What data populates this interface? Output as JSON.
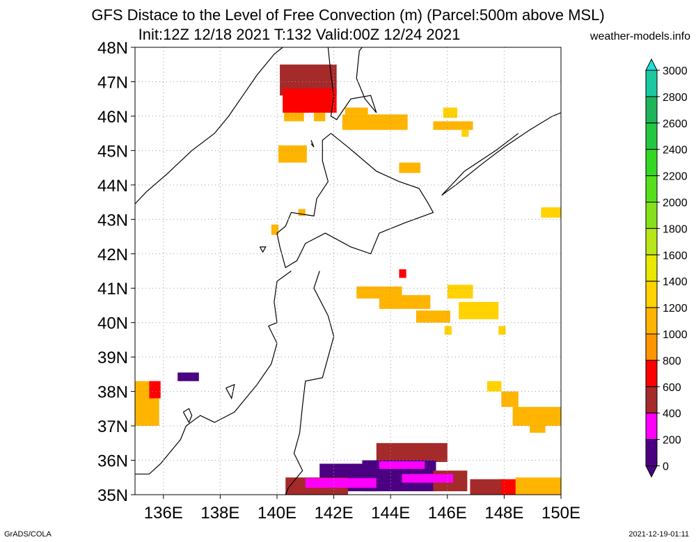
{
  "title_line1": "GFS Distace to the Level of Free Convection (m) (Parcel:500m above MSL)",
  "title_line2": "Init:12Z 12/18 2021 T:132 Valid:00Z 12/24 2021",
  "site": "weather-models.info",
  "footer_left": "GrADS/COLA",
  "footer_right": "2021-12-19-01:11",
  "map": {
    "lat_labels": [
      "48N",
      "47N",
      "46N",
      "45N",
      "44N",
      "43N",
      "42N",
      "41N",
      "40N",
      "39N",
      "38N",
      "37N",
      "36N",
      "35N"
    ],
    "lon_labels": [
      "136E",
      "138E",
      "140E",
      "142E",
      "144E",
      "146E",
      "148E",
      "150E"
    ],
    "lat_values": [
      48,
      47,
      46,
      45,
      44,
      43,
      42,
      41,
      40,
      39,
      38,
      37,
      36,
      35
    ],
    "lon_values": [
      136,
      138,
      140,
      142,
      144,
      146,
      148,
      150
    ],
    "lon_range": [
      135,
      150
    ],
    "lat_range": [
      35,
      48
    ],
    "grid": "dotted"
  },
  "colorbar": {
    "labels": [
      "3000",
      "2800",
      "2600",
      "2400",
      "2200",
      "2000",
      "1800",
      "1600",
      "1400",
      "1200",
      "1000",
      "800",
      "600",
      "400",
      "200",
      "0"
    ],
    "colors": [
      "#24dcdc",
      "#1cc8a0",
      "#1eb45a",
      "#22c840",
      "#33d822",
      "#56e01c",
      "#86e01c",
      "#b8e618",
      "#e8e800",
      "#ffd200",
      "#ffb400",
      "#ff9600",
      "#ff0000",
      "#a52a2a",
      "#ff00ff",
      "#4b0082"
    ]
  },
  "fields": [
    {
      "lon": 140.1,
      "lat": 46.6,
      "w": 2.0,
      "h": 0.9,
      "color": "#a52a2a"
    },
    {
      "lon": 140.2,
      "lat": 46.1,
      "w": 1.9,
      "h": 0.7,
      "color": "#ff0000"
    },
    {
      "lon": 140.25,
      "lat": 45.85,
      "w": 0.7,
      "h": 0.25,
      "color": "#ffb400"
    },
    {
      "lon": 141.3,
      "lat": 45.85,
      "w": 0.4,
      "h": 0.25,
      "color": "#ffb400"
    },
    {
      "lon": 142.3,
      "lat": 45.6,
      "w": 2.3,
      "h": 0.45,
      "color": "#ffb400"
    },
    {
      "lon": 142.4,
      "lat": 46.05,
      "w": 0.8,
      "h": 0.2,
      "color": "#ffb400"
    },
    {
      "lon": 145.5,
      "lat": 45.6,
      "w": 1.4,
      "h": 0.25,
      "color": "#ffb400"
    },
    {
      "lon": 145.85,
      "lat": 45.95,
      "w": 0.5,
      "h": 0.3,
      "color": "#ffd200"
    },
    {
      "lon": 146.5,
      "lat": 45.4,
      "w": 0.25,
      "h": 0.2,
      "color": "#ffd200"
    },
    {
      "lon": 140.05,
      "lat": 44.65,
      "w": 1.0,
      "h": 0.5,
      "color": "#ffb400"
    },
    {
      "lon": 144.3,
      "lat": 44.35,
      "w": 0.75,
      "h": 0.3,
      "color": "#ffb400"
    },
    {
      "lon": 140.75,
      "lat": 43.1,
      "w": 0.25,
      "h": 0.2,
      "color": "#ffb400"
    },
    {
      "lon": 139.8,
      "lat": 42.55,
      "w": 0.25,
      "h": 0.3,
      "color": "#ffb400"
    },
    {
      "lon": 149.3,
      "lat": 43.05,
      "w": 0.75,
      "h": 0.3,
      "color": "#ffd200"
    },
    {
      "lon": 144.3,
      "lat": 41.3,
      "w": 0.25,
      "h": 0.25,
      "color": "#ff0000"
    },
    {
      "lon": 142.8,
      "lat": 40.7,
      "w": 1.6,
      "h": 0.35,
      "color": "#ffb400"
    },
    {
      "lon": 143.6,
      "lat": 40.4,
      "w": 1.8,
      "h": 0.4,
      "color": "#ffb400"
    },
    {
      "lon": 144.9,
      "lat": 40.0,
      "w": 1.2,
      "h": 0.35,
      "color": "#ffb400"
    },
    {
      "lon": 146.0,
      "lat": 40.7,
      "w": 0.9,
      "h": 0.4,
      "color": "#ffd200"
    },
    {
      "lon": 146.4,
      "lat": 40.1,
      "w": 1.4,
      "h": 0.5,
      "color": "#ffd200"
    },
    {
      "lon": 145.9,
      "lat": 39.65,
      "w": 0.25,
      "h": 0.25,
      "color": "#ffd200"
    },
    {
      "lon": 147.8,
      "lat": 39.65,
      "w": 0.25,
      "h": 0.25,
      "color": "#ffd200"
    },
    {
      "lon": 147.4,
      "lat": 38.0,
      "w": 0.5,
      "h": 0.3,
      "color": "#ffd200"
    },
    {
      "lon": 147.9,
      "lat": 37.55,
      "w": 0.6,
      "h": 0.45,
      "color": "#ffb400"
    },
    {
      "lon": 148.3,
      "lat": 37.0,
      "w": 1.7,
      "h": 0.55,
      "color": "#ffb400"
    },
    {
      "lon": 148.9,
      "lat": 36.8,
      "w": 0.55,
      "h": 0.25,
      "color": "#ffb400"
    },
    {
      "lon": 135.0,
      "lat": 37.0,
      "w": 0.85,
      "h": 1.3,
      "color": "#ffb400"
    },
    {
      "lon": 135.5,
      "lat": 37.8,
      "w": 0.4,
      "h": 0.5,
      "color": "#ff0000"
    },
    {
      "lon": 136.5,
      "lat": 38.3,
      "w": 0.75,
      "h": 0.25,
      "color": "#4b0082"
    },
    {
      "lon": 143.5,
      "lat": 35.95,
      "w": 2.5,
      "h": 0.55,
      "color": "#a52a2a"
    },
    {
      "lon": 141.5,
      "lat": 35.1,
      "w": 2.2,
      "h": 0.8,
      "color": "#4b0082"
    },
    {
      "lon": 143.0,
      "lat": 35.1,
      "w": 2.6,
      "h": 0.9,
      "color": "#4b0082"
    },
    {
      "lon": 145.5,
      "lat": 35.1,
      "w": 1.2,
      "h": 0.6,
      "color": "#a52a2a"
    },
    {
      "lon": 140.3,
      "lat": 35.0,
      "w": 2.2,
      "h": 0.5,
      "color": "#a52a2a"
    },
    {
      "lon": 141.0,
      "lat": 35.2,
      "w": 2.5,
      "h": 0.28,
      "color": "#ff00ff"
    },
    {
      "lon": 143.6,
      "lat": 35.75,
      "w": 1.6,
      "h": 0.22,
      "color": "#ff00ff"
    },
    {
      "lon": 144.4,
      "lat": 35.35,
      "w": 1.8,
      "h": 0.25,
      "color": "#ff00ff"
    },
    {
      "lon": 146.8,
      "lat": 35.0,
      "w": 1.2,
      "h": 0.45,
      "color": "#a52a2a"
    },
    {
      "lon": 147.9,
      "lat": 35.0,
      "w": 0.6,
      "h": 0.45,
      "color": "#ff0000"
    },
    {
      "lon": 148.4,
      "lat": 35.0,
      "w": 1.6,
      "h": 0.5,
      "color": "#ffb400"
    }
  ],
  "coasts": [
    [
      [
        135.0,
        43.45
      ],
      [
        135.4,
        43.8
      ],
      [
        136.1,
        44.3
      ],
      [
        137.0,
        45.0
      ],
      [
        137.8,
        45.5
      ],
      [
        138.3,
        46.0
      ],
      [
        138.8,
        46.6
      ],
      [
        139.3,
        47.2
      ],
      [
        139.9,
        47.8
      ],
      [
        140.2,
        48.0
      ]
    ],
    [
      [
        141.8,
        48.0
      ],
      [
        141.9,
        47.2
      ],
      [
        142.0,
        46.6
      ],
      [
        141.9,
        46.0
      ],
      [
        142.1,
        45.9
      ],
      [
        142.6,
        46.5
      ],
      [
        143.3,
        46.6
      ],
      [
        143.5,
        46.1
      ],
      [
        143.1,
        46.5
      ],
      [
        142.8,
        47.1
      ],
      [
        142.9,
        47.9
      ],
      [
        143.0,
        48.0
      ]
    ],
    [
      [
        141.9,
        45.5
      ],
      [
        141.6,
        45.3
      ],
      [
        141.6,
        44.7
      ],
      [
        141.8,
        44.1
      ],
      [
        141.4,
        43.6
      ],
      [
        141.3,
        43.1
      ],
      [
        140.5,
        43.2
      ],
      [
        140.3,
        42.8
      ],
      [
        140.0,
        42.6
      ],
      [
        140.1,
        42.2
      ],
      [
        140.3,
        41.6
      ],
      [
        140.7,
        41.8
      ],
      [
        141.0,
        42.3
      ],
      [
        141.7,
        42.6
      ],
      [
        142.6,
        42.2
      ],
      [
        143.3,
        42.0
      ],
      [
        143.6,
        42.6
      ],
      [
        144.5,
        42.9
      ],
      [
        145.5,
        43.2
      ],
      [
        145.3,
        43.5
      ],
      [
        145.0,
        43.9
      ],
      [
        144.3,
        44.1
      ],
      [
        143.5,
        44.4
      ],
      [
        142.5,
        45.1
      ],
      [
        141.9,
        45.5
      ]
    ],
    [
      [
        140.5,
        41.5
      ],
      [
        140.0,
        41.2
      ],
      [
        139.9,
        40.6
      ],
      [
        140.0,
        40.0
      ],
      [
        139.7,
        39.9
      ],
      [
        140.0,
        39.4
      ],
      [
        139.8,
        38.8
      ],
      [
        139.3,
        38.2
      ],
      [
        138.9,
        37.8
      ],
      [
        138.5,
        37.4
      ],
      [
        137.8,
        37.1
      ],
      [
        137.3,
        37.3
      ],
      [
        136.8,
        37.0
      ],
      [
        136.6,
        36.6
      ],
      [
        135.9,
        35.9
      ],
      [
        135.5,
        35.6
      ],
      [
        135.0,
        35.6
      ]
    ],
    [
      [
        141.5,
        41.5
      ],
      [
        141.3,
        41.0
      ],
      [
        141.8,
        40.2
      ],
      [
        142.0,
        39.6
      ],
      [
        141.6,
        38.4
      ],
      [
        141.0,
        38.3
      ],
      [
        140.9,
        37.6
      ],
      [
        140.8,
        36.8
      ],
      [
        140.6,
        36.2
      ],
      [
        140.9,
        35.7
      ],
      [
        140.4,
        35.2
      ],
      [
        140.3,
        35.0
      ]
    ],
    [
      [
        148.5,
        45.5
      ],
      [
        147.7,
        45.0
      ],
      [
        146.6,
        44.4
      ],
      [
        145.8,
        43.7
      ],
      [
        146.3,
        44.0
      ],
      [
        147.2,
        44.6
      ],
      [
        148.0,
        45.1
      ],
      [
        148.9,
        45.6
      ],
      [
        149.7,
        46.0
      ],
      [
        150.0,
        46.1
      ]
    ],
    [
      [
        136.7,
        37.4
      ],
      [
        136.9,
        37.1
      ],
      [
        137.0,
        37.3
      ],
      [
        136.9,
        37.5
      ],
      [
        136.7,
        37.4
      ]
    ],
    [
      [
        138.2,
        38.1
      ],
      [
        138.4,
        37.8
      ],
      [
        138.5,
        38.2
      ],
      [
        138.2,
        38.1
      ]
    ],
    [
      [
        139.4,
        42.2
      ],
      [
        139.5,
        42.05
      ],
      [
        139.6,
        42.2
      ],
      [
        139.4,
        42.2
      ]
    ],
    [
      [
        141.2,
        45.3
      ],
      [
        141.3,
        45.1
      ],
      [
        141.2,
        45.2
      ]
    ]
  ]
}
